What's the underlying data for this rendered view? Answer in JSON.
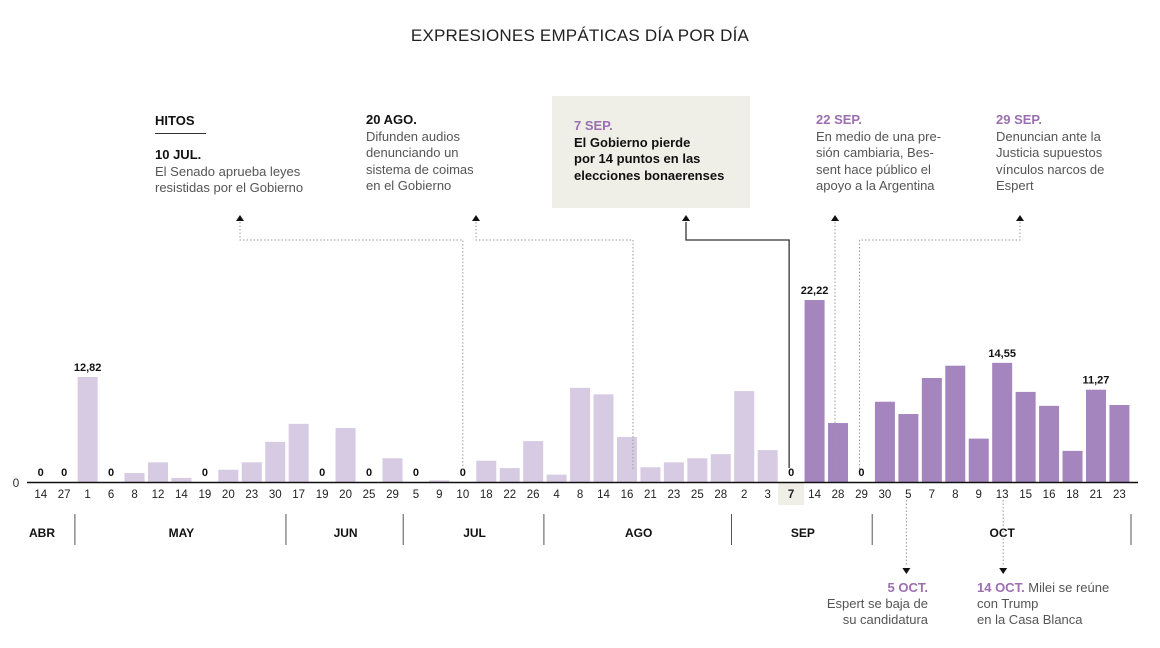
{
  "chart_data": {
    "type": "bar",
    "title": "EXPRESIONES EMPÁTICAS DÍA POR DÍA",
    "xlabel": "",
    "ylabel": "",
    "y_tick_labels": [
      "0"
    ],
    "ylim": [
      0,
      23
    ],
    "grid": false,
    "highlight_category_index": 37,
    "colors": {
      "before": "#d7cbe3",
      "after": "#a585be",
      "highlight_bg": "#efeee7"
    },
    "categories": [
      "14",
      "27",
      "1",
      "6",
      "8",
      "12",
      "14",
      "19",
      "20",
      "23",
      "30",
      "17",
      "19",
      "20",
      "25",
      "29",
      "5",
      "9",
      "10",
      "18",
      "22",
      "26",
      "4",
      "8",
      "14",
      "16",
      "21",
      "23",
      "25",
      "28",
      "2",
      "3",
      "7",
      "14",
      "28",
      "29",
      "30",
      "5",
      "7",
      "8",
      "9",
      "13",
      "15",
      "16",
      "18",
      "21",
      "23"
    ],
    "months": [
      {
        "label": "ABR",
        "count": 2
      },
      {
        "label": "MAY",
        "count": 9
      },
      {
        "label": "JUN",
        "count": 5
      },
      {
        "label": "JUL",
        "count": 6
      },
      {
        "label": "AGO",
        "count": 8
      },
      {
        "label": "SEP",
        "count": 6
      },
      {
        "label": "OCT",
        "count": 11
      }
    ],
    "values": [
      0,
      0,
      12.82,
      0,
      1.1,
      2.4,
      0.5,
      0,
      1.5,
      2.4,
      4.9,
      7.1,
      0,
      6.6,
      0,
      2.9,
      0,
      0.2,
      0,
      2.6,
      1.7,
      5.0,
      0.9,
      11.5,
      10.7,
      5.5,
      1.8,
      2.4,
      2.9,
      3.4,
      11.1,
      3.9,
      0,
      22.22,
      7.2,
      0,
      9.8,
      8.3,
      12.7,
      14.2,
      5.3,
      14.55,
      11.0,
      9.3,
      3.8,
      11.27,
      9.4
    ],
    "period_split_index": 33,
    "value_labels": {
      "0": "0",
      "1": "0",
      "2": "12,82",
      "3": "0",
      "7": "0",
      "12": "0",
      "14": "0",
      "16": "0",
      "18": "0",
      "32": "0",
      "33": "22,22",
      "35": "0",
      "41": "14,55",
      "45": "11,27"
    }
  },
  "annotations": {
    "hitos_label": "HITOS",
    "top": [
      {
        "date": "10 JUL.",
        "text": "El Senado aprueba leyes resistidas por el Gobierno",
        "bar_index": 18,
        "style": "plain"
      },
      {
        "date": "20 AGO.",
        "text": "Difunden audios denunciando un sistema de coimas en el Gobierno",
        "bar_index": 25,
        "style": "plain"
      },
      {
        "date": "7 SEP.",
        "text": "El Gobierno pierde por 14 puntos en las elecciones bonaerenses",
        "bar_index": 32,
        "style": "highlight"
      },
      {
        "date": "22 SEP.",
        "text": "En medio de una presión cambiaria, Bessent hace público el apoyo a la Argentina",
        "bar_index": 34,
        "style": "purple"
      },
      {
        "date": "29 SEP.",
        "text": "Denuncian ante la Justicia supuestos vínculos narcos de Espert",
        "bar_index": 35,
        "style": "purple"
      }
    ],
    "bottom": [
      {
        "date": "5 OCT.",
        "text": "Espert se baja de su candidatura",
        "bar_index": 37
      },
      {
        "date": "14 OCT.",
        "text": "Milei se reúne con Trump en la Casa Blanca",
        "bar_index": 41
      }
    ]
  },
  "texts": {
    "n1_l1": "El Senado aprueba leyes",
    "n1_l2": "resistidas por el Gobierno",
    "n2_l1": "Difunden audios",
    "n2_l2": "denunciando un",
    "n2_l3": "sistema de coimas",
    "n2_l4": "en el Gobierno",
    "n3_l1": "El Gobierno pierde",
    "n3_l2": "por 14 puntos en las",
    "n3_l3": "elecciones bonaerenses",
    "n4_l1": "En medio de una pre-",
    "n4_l2": "sión cambiaria, Bes-",
    "n4_l3": "sent hace público el",
    "n4_l4": "apoyo a la Argentina",
    "n5_l1": "Denuncian ante la",
    "n5_l2": "Justicia supuestos",
    "n5_l3": "vínculos narcos de",
    "n5_l4": "Espert",
    "b1_l1": "Espert se baja de",
    "b1_l2": "su candidatura",
    "b2_l0": " Milei se reúne",
    "b2_l1": "con Trump",
    "b2_l2": "en la Casa Blanca"
  }
}
